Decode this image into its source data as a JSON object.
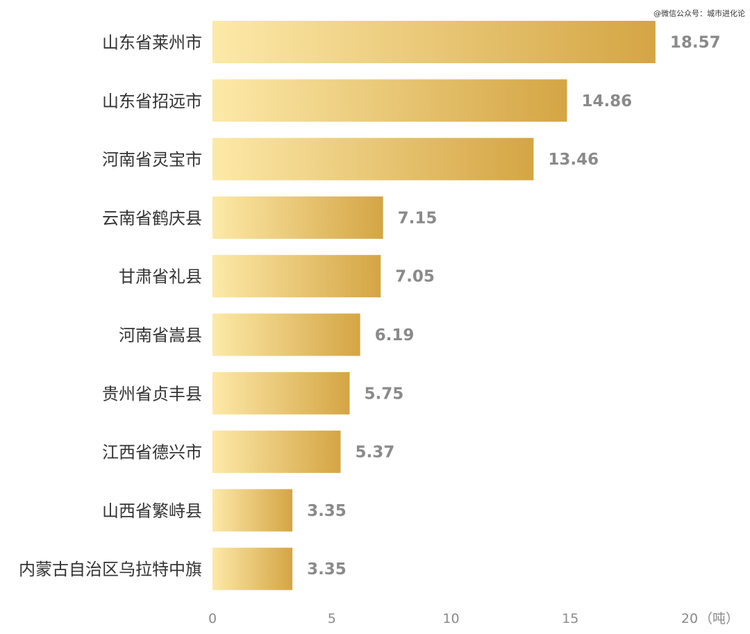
{
  "watermark": "@微信公众号：城市进化论",
  "chart_data": {
    "type": "bar",
    "orientation": "horizontal",
    "categories": [
      "山东省莱州市",
      "山东省招远市",
      "河南省灵宝市",
      "云南省鹤庆县",
      "甘肃省礼县",
      "河南省嵩县",
      "贵州省贞丰县",
      "江西省德兴市",
      "山西省繁峙县",
      "内蒙古自治区乌拉特中旗"
    ],
    "values": [
      18.57,
      14.86,
      13.46,
      7.15,
      7.05,
      6.19,
      5.75,
      5.37,
      3.35,
      3.35
    ],
    "value_labels": [
      "18.57",
      "14.86",
      "13.46",
      "7.15",
      "7.05",
      "6.19",
      "5.75",
      "5.37",
      "3.35",
      "3.35"
    ],
    "xticks": [
      "0",
      "5",
      "10",
      "15",
      "20"
    ],
    "xtick_values": [
      0,
      5,
      10,
      15,
      20
    ],
    "xunit": "（吨）",
    "xlim": [
      0,
      20
    ],
    "grid": false,
    "colors": {
      "bar_start": "#fde9a8",
      "bar_end": "#d4a544",
      "value_text": "#8a8a8a",
      "category_text": "#333333"
    }
  }
}
